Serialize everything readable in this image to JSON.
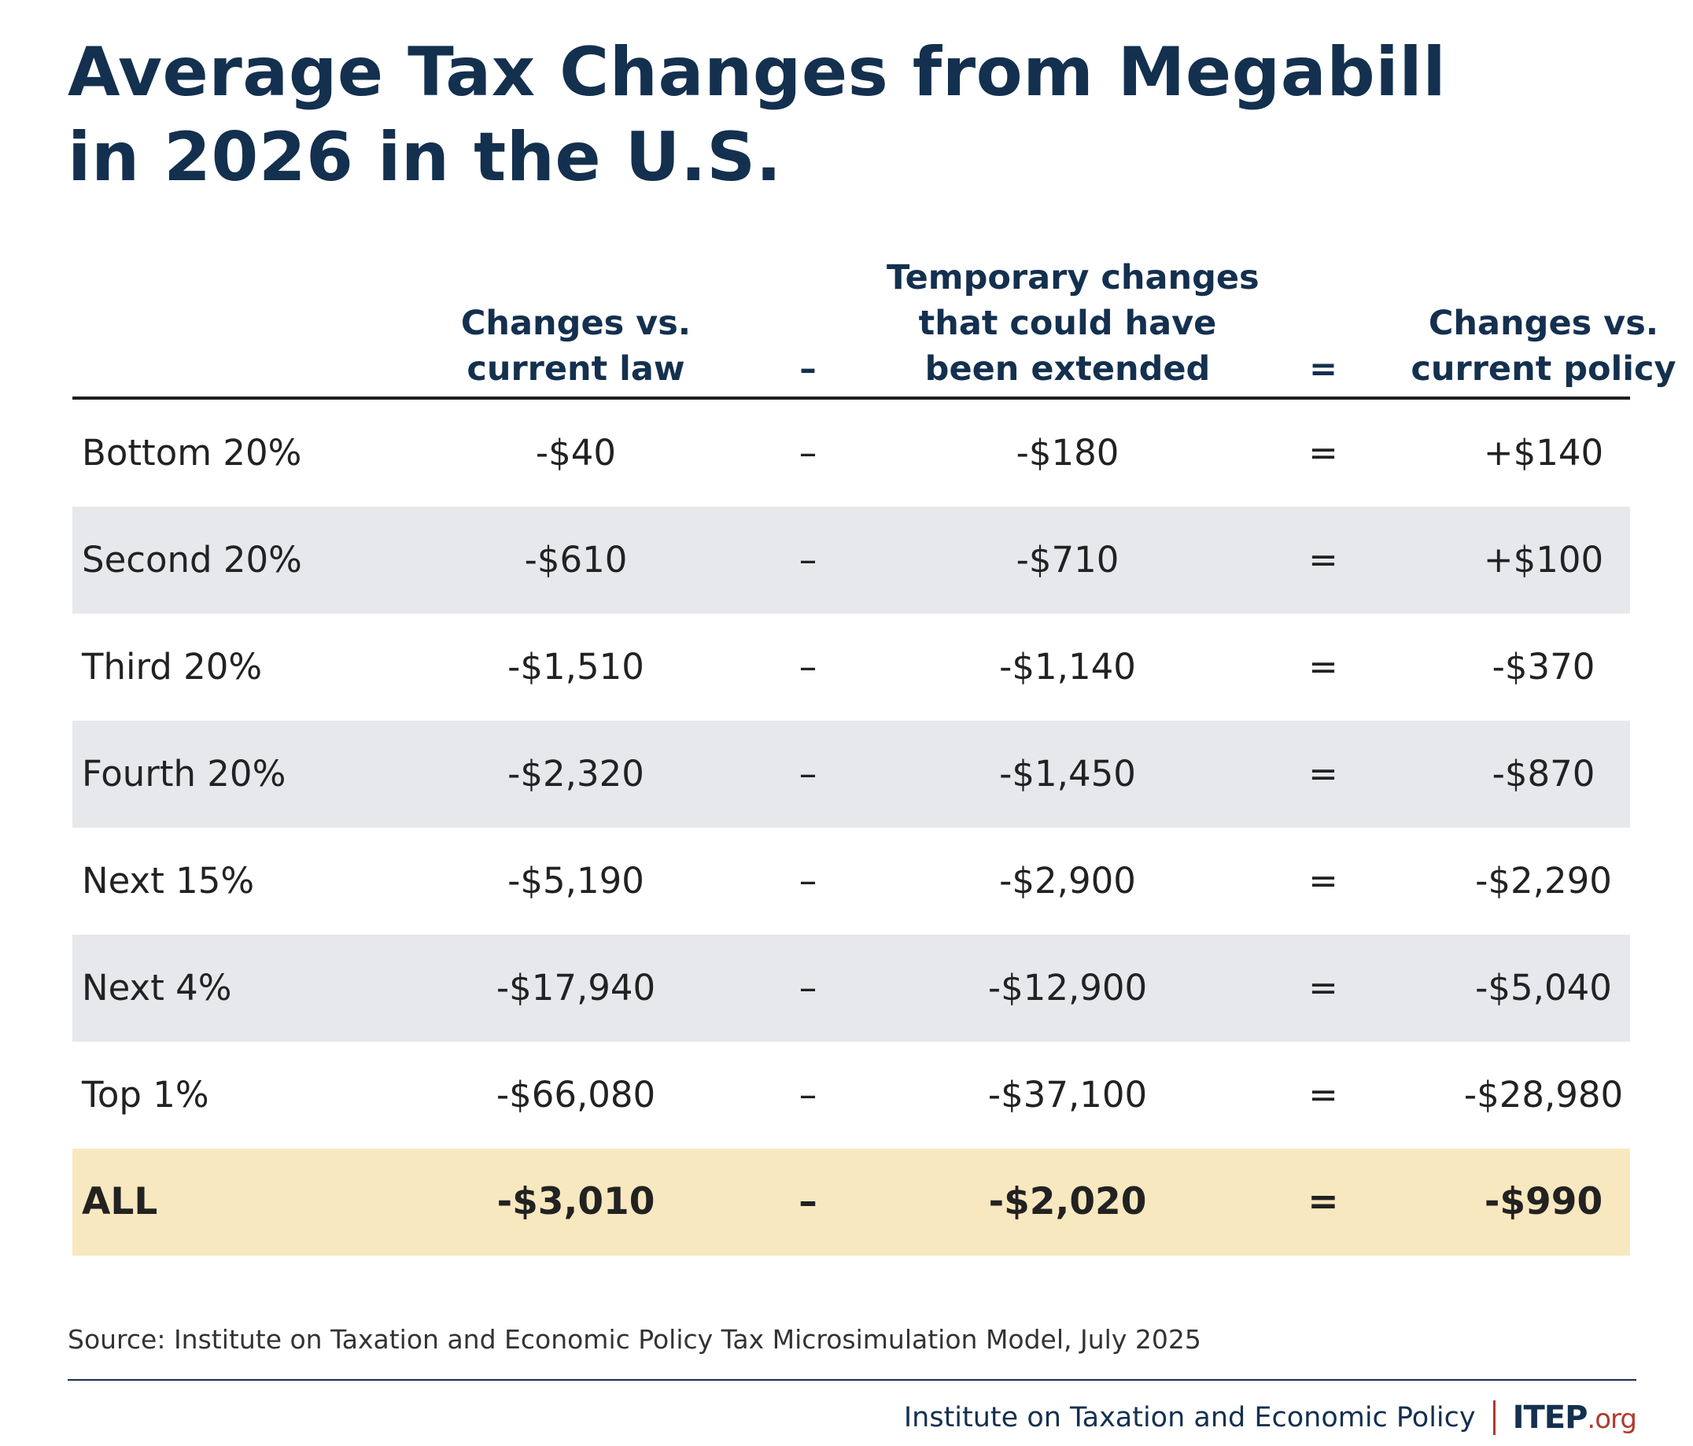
{
  "chart_data": {
    "type": "table",
    "title_lines": [
      "Average Tax Changes from Megabill",
      "in 2026 in the U.S."
    ],
    "columns": [
      {
        "header_lines": [
          "Changes vs.",
          "current law"
        ]
      },
      {
        "operator": "–"
      },
      {
        "header_lines": [
          "Temporary changes",
          "that could have",
          "been extended"
        ]
      },
      {
        "operator": "="
      },
      {
        "header_lines": [
          "Changes vs.",
          "current policy"
        ]
      }
    ],
    "rows": [
      {
        "label": "Bottom 20%",
        "current_law": "-$40",
        "minus": "–",
        "temporary": "-$180",
        "equals": "=",
        "current_policy": "+$140"
      },
      {
        "label": "Second 20%",
        "current_law": "-$610",
        "minus": "–",
        "temporary": "-$710",
        "equals": "=",
        "current_policy": "+$100"
      },
      {
        "label": "Third 20%",
        "current_law": "-$1,510",
        "minus": "–",
        "temporary": "-$1,140",
        "equals": "=",
        "current_policy": "-$370"
      },
      {
        "label": "Fourth 20%",
        "current_law": "-$2,320",
        "minus": "–",
        "temporary": "-$1,450",
        "equals": "=",
        "current_policy": "-$870"
      },
      {
        "label": "Next 15%",
        "current_law": "-$5,190",
        "minus": "–",
        "temporary": "-$2,900",
        "equals": "=",
        "current_policy": "-$2,290"
      },
      {
        "label": "Next 4%",
        "current_law": "-$17,940",
        "minus": "–",
        "temporary": "-$12,900",
        "equals": "=",
        "current_policy": "-$5,040"
      },
      {
        "label": "Top 1%",
        "current_law": "-$66,080",
        "minus": "–",
        "temporary": "-$37,100",
        "equals": "=",
        "current_policy": "-$28,980"
      }
    ],
    "total": {
      "label": "ALL",
      "current_law": "-$3,010",
      "minus": "–",
      "temporary": "-$2,020",
      "equals": "=",
      "current_policy": "-$990"
    },
    "source": "Source: Institute on Taxation and Economic Policy Tax Microsimulation Model, July 2025"
  },
  "footer": {
    "org_name": "Institute on Taxation and Economic Policy",
    "logo_main": "ITEP",
    "logo_tld": ".org"
  },
  "colors": {
    "title": "#14304f",
    "row_shade": "#e6e8eb",
    "total_row": "#f8e8bf",
    "accent": "#b03a2e"
  }
}
